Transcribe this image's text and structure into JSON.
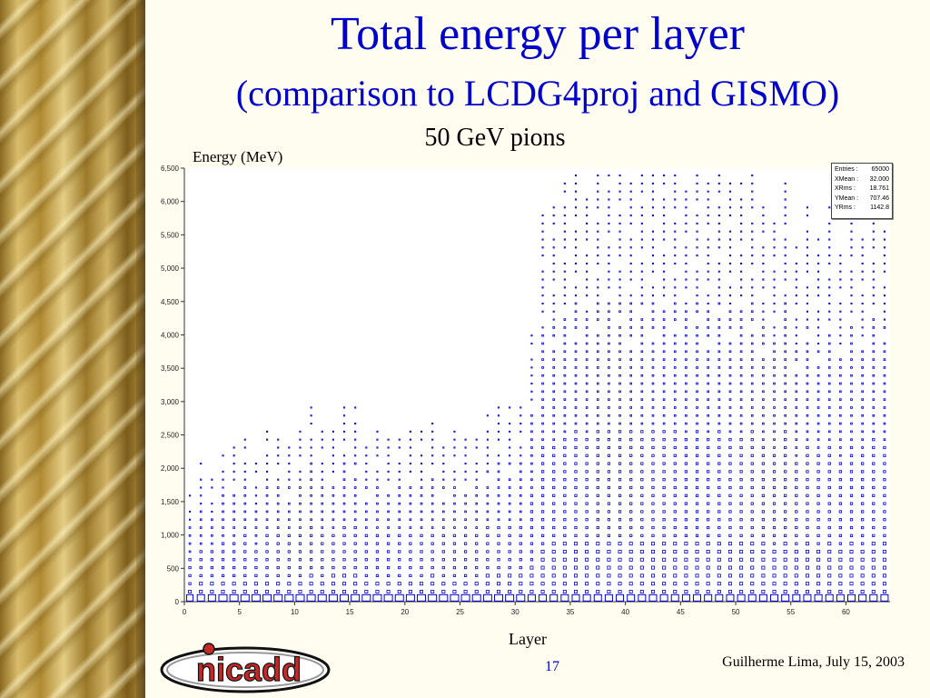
{
  "slide": {
    "title": "Total energy per layer",
    "subtitle": "(comparison to LCDG4proj and GISMO)",
    "caption": "50 GeV pions",
    "page_number": "17",
    "footer": "Guilherme Lima, July 15, 2003",
    "logo_text": "nicadd"
  },
  "colors": {
    "title": "#0000cc",
    "markers": "#0000cc",
    "axis": "#333333"
  },
  "stats": [
    {
      "label": "Entries :",
      "value": "65000"
    },
    {
      "label": "XMean : ",
      "value": "32.000"
    },
    {
      "label": "XRms :",
      "value": "18.761"
    },
    {
      "label": "YMean : ",
      "value": "707.46"
    },
    {
      "label": "YRms :",
      "value": "1142.8"
    }
  ],
  "chart_data": {
    "type": "scatter",
    "title": "",
    "xlabel": "Layer",
    "ylabel": "Energy (MeV)",
    "xlim": [
      0,
      64
    ],
    "ylim": [
      0,
      6500
    ],
    "x_ticks": [
      0,
      5,
      10,
      15,
      20,
      25,
      30,
      35,
      40,
      45,
      50,
      55,
      60
    ],
    "y_ticks": [
      0,
      500,
      1000,
      1500,
      2000,
      2500,
      3000,
      3500,
      4000,
      4500,
      5000,
      5500,
      6000,
      6500
    ],
    "y_tick_labels": [
      "0",
      "500",
      "1,000",
      "1,500",
      "2,000",
      "2,500",
      "3,000",
      "3,500",
      "4,000",
      "4,500",
      "5,000",
      "5,500",
      "6,000",
      "6,500"
    ],
    "marker": "box",
    "bin_width": 100,
    "layer_max_energy": [
      1700,
      2100,
      1900,
      2300,
      2400,
      2500,
      2100,
      2600,
      2500,
      2500,
      2600,
      3000,
      2600,
      2700,
      3000,
      3000,
      2500,
      2600,
      2600,
      2500,
      2600,
      2600,
      2700,
      2500,
      2600,
      2600,
      2500,
      2800,
      3000,
      3000,
      3000,
      4000,
      5800,
      6000,
      6300,
      6400,
      6200,
      6500,
      6400,
      6500,
      6400,
      6500,
      6500,
      6400,
      6400,
      6300,
      6500,
      6300,
      6400,
      6300,
      6300,
      6400,
      6000,
      5700,
      6500,
      5400,
      6000,
      5500,
      6000,
      5300,
      6000,
      5500,
      6300,
      6000
    ],
    "first_bin_box_size": [
      7,
      8,
      8,
      9,
      9,
      9,
      9,
      9,
      9,
      9,
      9,
      9,
      9,
      9,
      9,
      9,
      9,
      9,
      9,
      9,
      9,
      9,
      9,
      9,
      9,
      9,
      9,
      9,
      9,
      9,
      9,
      8,
      8,
      8,
      8,
      8,
      8,
      8,
      8,
      8,
      8,
      8,
      8,
      8,
      8,
      8,
      8,
      8,
      8,
      8,
      8,
      8,
      8,
      8,
      8,
      8,
      8,
      8,
      8,
      8,
      8,
      8,
      8,
      8
    ]
  }
}
